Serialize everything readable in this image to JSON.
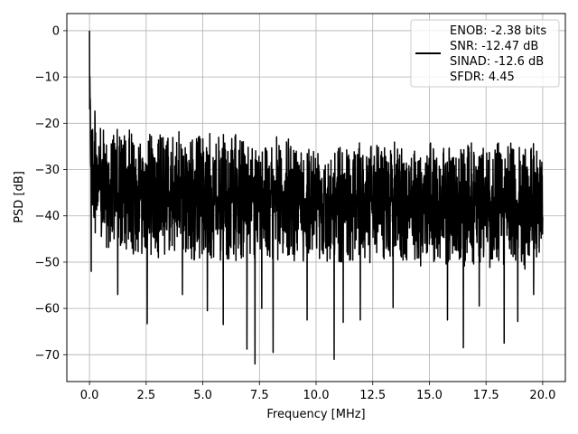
{
  "chart_data": {
    "type": "line",
    "title": "",
    "xlabel": "Frequency [MHz]",
    "ylabel": "PSD [dB]",
    "xlim": [
      -1.0,
      21.0
    ],
    "ylim": [
      -75.8,
      3.7
    ],
    "xticks": [
      0.0,
      2.5,
      5.0,
      7.5,
      10.0,
      12.5,
      15.0,
      17.5,
      20.0
    ],
    "xtick_labels": [
      "0.0",
      "2.5",
      "5.0",
      "7.5",
      "10.0",
      "12.5",
      "15.0",
      "17.5",
      "20.0"
    ],
    "yticks": [
      0,
      -10,
      -20,
      -30,
      -40,
      -50,
      -60,
      -70
    ],
    "ytick_labels": [
      "0",
      "−10",
      "−20",
      "−30",
      "−40",
      "−50",
      "−60",
      "−70"
    ],
    "grid": true,
    "legend_position": "top-right",
    "legend": [
      "ENOB: -2.38 bits",
      "SNR: -12.47 dB",
      "SINAD: -12.6 dB",
      "SFDR: 4.45"
    ],
    "series": [
      {
        "color": "#000000",
        "description": "Dense noise-like PSD spanning 0 to 20 MHz: peak of 0 dB at DC, noise floor band roughly -22 to -50 dB, deep dips to about -72 dB",
        "peak": {
          "x": 0.0,
          "y": 0.0
        },
        "band_upper": [
          [
            0.0,
            -12
          ],
          [
            0.5,
            -21
          ],
          [
            2.0,
            -21
          ],
          [
            5.0,
            -22
          ],
          [
            10.0,
            -23
          ],
          [
            15.0,
            -24
          ],
          [
            20.0,
            -24
          ]
        ],
        "band_lower": [
          [
            0.0,
            -40
          ],
          [
            0.5,
            -48
          ],
          [
            5.0,
            -50
          ],
          [
            10.0,
            -50
          ],
          [
            15.0,
            -51
          ],
          [
            20.0,
            -52
          ]
        ],
        "dips": [
          {
            "x": 0.08,
            "y": -52
          },
          {
            "x": 1.25,
            "y": -57
          },
          {
            "x": 2.55,
            "y": -63.3
          },
          {
            "x": 4.1,
            "y": -57
          },
          {
            "x": 5.2,
            "y": -60.5
          },
          {
            "x": 5.9,
            "y": -63.5
          },
          {
            "x": 6.95,
            "y": -68.8
          },
          {
            "x": 7.3,
            "y": -72.0
          },
          {
            "x": 7.6,
            "y": -60
          },
          {
            "x": 8.1,
            "y": -69.5
          },
          {
            "x": 9.6,
            "y": -62.5
          },
          {
            "x": 10.8,
            "y": -71.0
          },
          {
            "x": 11.2,
            "y": -63
          },
          {
            "x": 11.95,
            "y": -62.5
          },
          {
            "x": 13.4,
            "y": -59.8
          },
          {
            "x": 15.8,
            "y": -62.5
          },
          {
            "x": 16.5,
            "y": -68.5
          },
          {
            "x": 17.2,
            "y": -59.5
          },
          {
            "x": 18.3,
            "y": -67.5
          },
          {
            "x": 18.9,
            "y": -62.8
          },
          {
            "x": 19.6,
            "y": -57
          }
        ]
      }
    ]
  }
}
